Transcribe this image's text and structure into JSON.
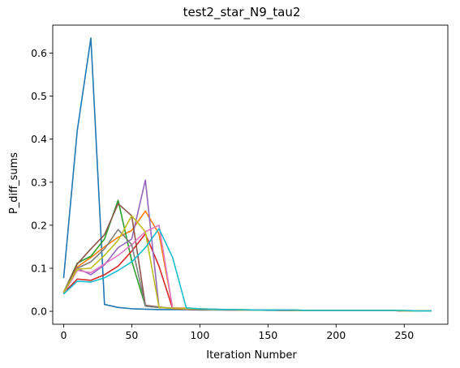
{
  "chart_data": {
    "type": "line",
    "title": "test2_star_N9_tau2",
    "xlabel": "Iteration Number",
    "ylabel": "P_diff_sums",
    "xlim": [
      -8,
      282
    ],
    "ylim": [
      -0.03,
      0.665
    ],
    "xticks": [
      0,
      50,
      100,
      150,
      200,
      250
    ],
    "xtick_labels": [
      "0",
      "50",
      "100",
      "150",
      "200",
      "250"
    ],
    "yticks": [
      0.0,
      0.1,
      0.2,
      0.3,
      0.4,
      0.5,
      0.6
    ],
    "ytick_labels": [
      "0.0",
      "0.1",
      "0.2",
      "0.3",
      "0.4",
      "0.5",
      "0.6"
    ],
    "grid": false,
    "x": [
      0,
      10,
      20,
      30,
      40,
      50,
      60,
      70,
      80,
      90,
      100,
      110,
      120,
      130,
      140,
      150,
      160,
      170,
      180,
      190,
      200,
      210,
      220,
      230,
      240,
      250,
      260,
      270
    ],
    "series": [
      {
        "color": "#1f77b4",
        "values": [
          0.077,
          0.42,
          0.635,
          0.016,
          0.009,
          0.006,
          0.005,
          0.004,
          0.004,
          0.004,
          0.003,
          0.003,
          0.003,
          0.003,
          0.003,
          0.002,
          0.002,
          0.002,
          0.002,
          0.002,
          0.002,
          0.002,
          0.002,
          0.002,
          0.002,
          0.001,
          0.001,
          0.001
        ]
      },
      {
        "color": "#ff7f0e",
        "values": [
          0.045,
          0.103,
          0.125,
          0.15,
          0.172,
          0.188,
          0.233,
          0.18,
          0.008,
          0.007,
          0.006,
          0.005,
          0.004,
          0.004,
          0.003,
          0.003,
          0.003,
          0.003,
          0.002,
          0.002,
          0.002,
          0.002,
          0.002,
          0.002,
          0.002,
          0.002,
          0.001,
          0.001
        ]
      },
      {
        "color": "#2ca02c",
        "values": [
          0.044,
          0.112,
          0.128,
          0.168,
          0.258,
          0.117,
          0.012,
          0.009,
          0.007,
          0.006,
          0.005,
          0.004,
          0.004,
          0.003,
          0.003,
          0.003,
          0.003,
          0.002,
          0.002,
          0.002,
          0.002,
          0.002,
          0.002,
          0.002,
          0.002,
          0.001,
          0.001,
          0.001
        ]
      },
      {
        "color": "#d62728",
        "values": [
          0.042,
          0.075,
          0.072,
          0.085,
          0.105,
          0.14,
          0.18,
          0.105,
          0.006,
          0.005,
          0.004,
          0.004,
          0.003,
          0.003,
          0.003,
          0.003,
          0.002,
          0.002,
          0.002,
          0.002,
          0.002,
          0.002,
          0.002,
          0.002,
          0.002,
          0.001,
          0.001,
          0.001
        ]
      },
      {
        "color": "#9467bd",
        "values": [
          0.04,
          0.1,
          0.085,
          0.108,
          0.148,
          0.168,
          0.305,
          0.009,
          0.007,
          0.006,
          0.005,
          0.004,
          0.004,
          0.003,
          0.003,
          0.003,
          0.003,
          0.002,
          0.002,
          0.002,
          0.002,
          0.002,
          0.002,
          0.002,
          0.002,
          0.001,
          0.001,
          0.001
        ]
      },
      {
        "color": "#8c564b",
        "values": [
          0.043,
          0.11,
          0.145,
          0.178,
          0.25,
          0.222,
          0.014,
          0.01,
          0.007,
          0.006,
          0.005,
          0.004,
          0.004,
          0.003,
          0.003,
          0.003,
          0.003,
          0.002,
          0.002,
          0.002,
          0.002,
          0.002,
          0.002,
          0.002,
          0.002,
          0.001,
          0.001,
          0.001
        ]
      },
      {
        "color": "#e377c2",
        "values": [
          0.041,
          0.095,
          0.09,
          0.11,
          0.13,
          0.155,
          0.185,
          0.2,
          0.007,
          0.006,
          0.005,
          0.004,
          0.004,
          0.003,
          0.003,
          0.003,
          0.003,
          0.002,
          0.002,
          0.002,
          0.002,
          0.002,
          0.002,
          0.002,
          0.002,
          0.001,
          0.001,
          0.001
        ]
      },
      {
        "color": "#7f7f7f",
        "values": [
          0.043,
          0.1,
          0.115,
          0.145,
          0.19,
          0.155,
          0.012,
          0.009,
          0.007,
          0.006,
          0.005,
          0.004,
          0.004,
          0.003,
          0.003,
          0.003,
          0.003,
          0.002,
          0.002,
          0.002,
          0.002,
          0.002,
          0.002,
          0.002,
          0.002,
          0.001,
          0.001,
          0.001
        ]
      },
      {
        "color": "#bcbd22",
        "values": [
          0.044,
          0.098,
          0.1,
          0.13,
          0.165,
          0.222,
          0.185,
          0.009,
          0.007,
          0.006,
          0.005,
          0.004,
          0.004,
          0.003,
          0.003,
          0.003,
          0.003,
          0.002,
          0.002,
          0.002,
          0.002,
          0.002,
          0.002,
          0.002,
          0.002,
          0.001,
          0.001,
          0.001
        ]
      },
      {
        "color": "#17becf",
        "values": [
          0.04,
          0.07,
          0.068,
          0.078,
          0.095,
          0.115,
          0.148,
          0.192,
          0.125,
          0.008,
          0.006,
          0.005,
          0.004,
          0.004,
          0.003,
          0.003,
          0.003,
          0.003,
          0.002,
          0.002,
          0.002,
          0.002,
          0.002,
          0.002,
          0.002,
          0.002,
          0.001,
          0.001
        ]
      }
    ]
  }
}
